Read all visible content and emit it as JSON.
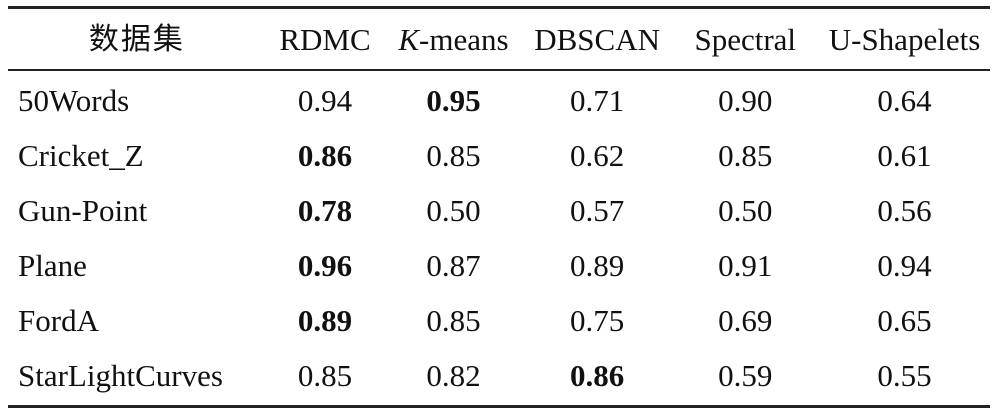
{
  "table": {
    "headers": {
      "dataset": "数据集",
      "rdmc": "RDMC",
      "kmeans_italic": "K",
      "kmeans_rest": "-means",
      "dbscan": "DBSCAN",
      "spectral": "Spectral",
      "ushapelets": "U-Shapelets"
    },
    "rows": [
      {
        "name": "50Words",
        "values": [
          "0.94",
          "0.95",
          "0.71",
          "0.90",
          "0.64"
        ],
        "bold_index": 1
      },
      {
        "name": "Cricket_Z",
        "values": [
          "0.86",
          "0.85",
          "0.62",
          "0.85",
          "0.61"
        ],
        "bold_index": 0
      },
      {
        "name": "Gun-Point",
        "values": [
          "0.78",
          "0.50",
          "0.57",
          "0.50",
          "0.56"
        ],
        "bold_index": 0
      },
      {
        "name": "Plane",
        "values": [
          "0.96",
          "0.87",
          "0.89",
          "0.91",
          "0.94"
        ],
        "bold_index": 0
      },
      {
        "name": "FordA",
        "values": [
          "0.89",
          "0.85",
          "0.75",
          "0.69",
          "0.65"
        ],
        "bold_index": 0
      },
      {
        "name": "StarLightCurves",
        "values": [
          "0.85",
          "0.82",
          "0.86",
          "0.59",
          "0.55"
        ],
        "bold_index": 2
      }
    ]
  }
}
